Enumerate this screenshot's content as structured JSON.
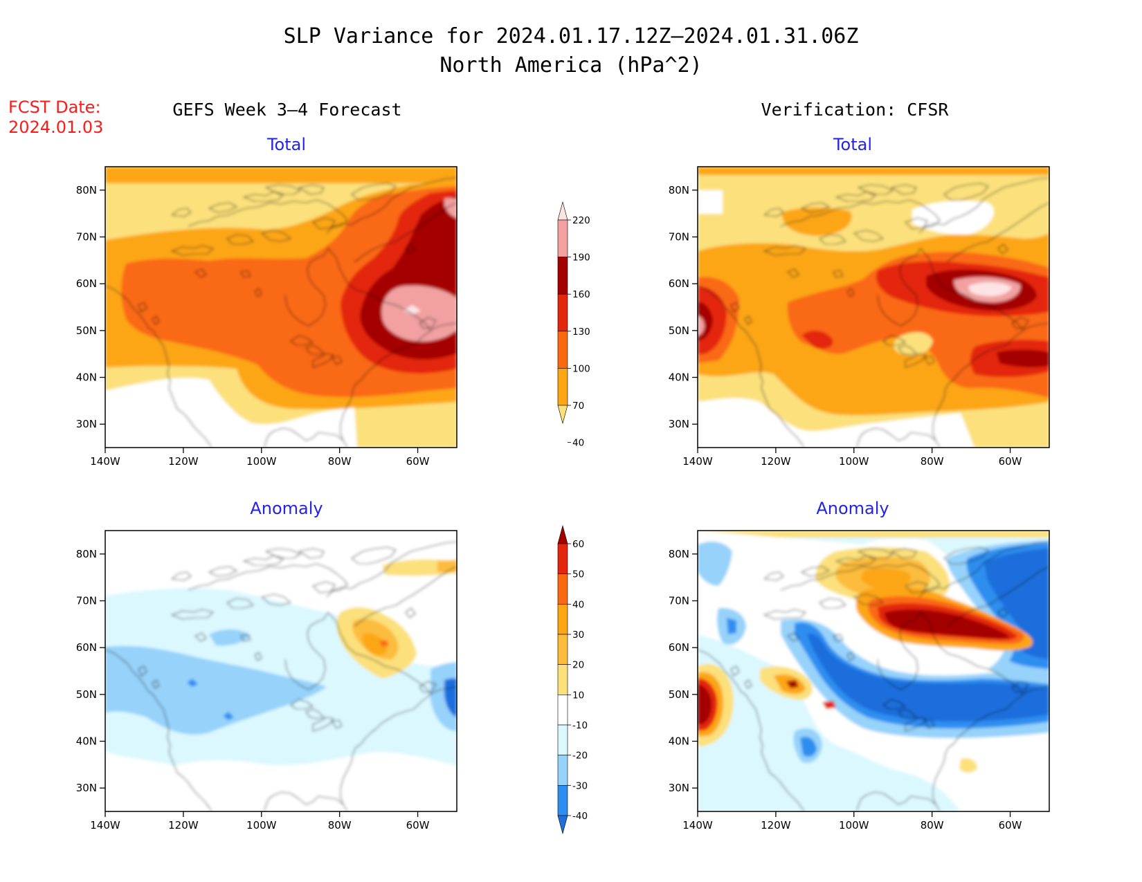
{
  "title": {
    "line1": "SLP Variance for 2024.01.17.12Z–2024.01.31.06Z",
    "line2": "North America (hPa^2)"
  },
  "fcst_date": {
    "label": "FCST Date:",
    "value": "2024.01.03"
  },
  "columns": {
    "left": "GEFS Week 3–4 Forecast",
    "right": "Verification: CFSR"
  },
  "panels": {
    "total_label": "Total",
    "anomaly_label": "Anomaly"
  },
  "axes": {
    "lat_ticks": [
      "80N",
      "70N",
      "60N",
      "50N",
      "40N",
      "30N"
    ],
    "lon_ticks": [
      "140W",
      "120W",
      "100W",
      "80W",
      "60W"
    ],
    "lon_range": [
      -140,
      -50
    ],
    "lat_range": [
      25,
      85
    ]
  },
  "colorbar_total": {
    "levels": [
      "40",
      "70",
      "100",
      "130",
      "160",
      "190",
      "220"
    ],
    "colors": [
      "#fbe07b",
      "#fca614",
      "#fa6912",
      "#e3260c",
      "#a50000",
      "#f2a0a0",
      "#fde4e4"
    ]
  },
  "colorbar_anomaly": {
    "levels": [
      "-40",
      "-30",
      "-20",
      "-10",
      "10",
      "20",
      "30",
      "40",
      "50",
      "60"
    ],
    "colors": [
      "#1e6edc",
      "#2e8ef0",
      "#96d2fa",
      "#dcf8ff",
      "#ffffff",
      "#fbe07b",
      "#fcbc3c",
      "#fca614",
      "#fa6912",
      "#e3260c",
      "#a50000"
    ]
  }
}
